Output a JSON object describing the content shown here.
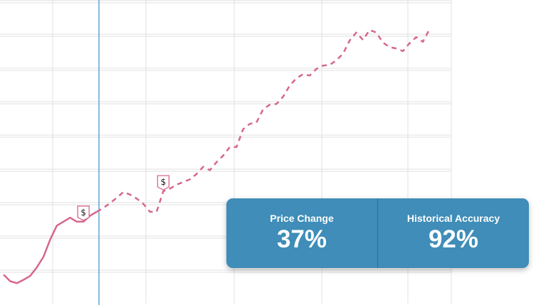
{
  "stats": {
    "price_change": {
      "label": "Price Change",
      "value": "37%"
    },
    "historical_accuracy": {
      "label": "Historical Accuracy",
      "value": "92%"
    }
  },
  "colors": {
    "line": "#d6668f",
    "cursor": "#3a93c6",
    "card": "#3f8db8",
    "grid": "#e1e1e1"
  },
  "marker_symbol": "$",
  "chart_data": {
    "type": "line",
    "grid": true,
    "cursor_index": 8,
    "series": [
      {
        "style": "solid",
        "values": [
          3,
          -7,
          -10,
          -5,
          1,
          14,
          30,
          56,
          77,
          83,
          89,
          83,
          83,
          92,
          98
        ]
      },
      {
        "style": "dashed",
        "values": [
          98,
          104,
          111,
          119,
          128,
          124,
          118,
          110,
          98,
          98,
          129,
          133,
          139,
          143,
          147,
          155,
          166,
          161,
          173,
          183,
          196,
          196,
          223,
          231,
          233,
          253,
          260,
          261,
          272,
          289,
          300,
          306,
          304,
          314,
          319,
          320,
          327,
          337,
          357,
          369,
          358,
          373,
          369,
          354,
          347,
          345,
          341,
          353,
          362,
          355,
          374
        ]
      }
    ],
    "markers": [
      {
        "series": 0,
        "index": 12
      },
      {
        "series": 1,
        "index": 10
      }
    ]
  }
}
